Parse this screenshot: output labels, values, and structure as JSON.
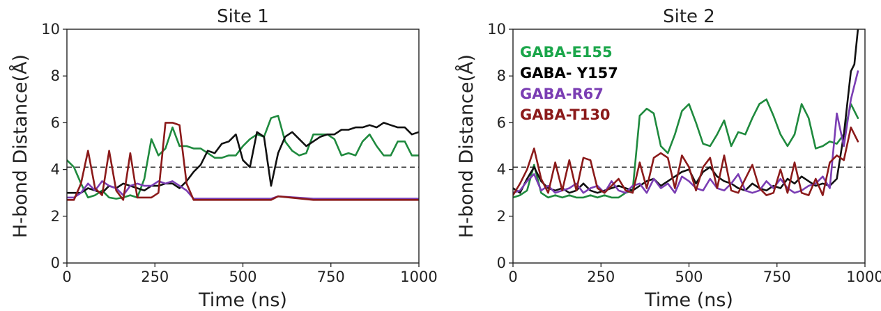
{
  "chart_data": [
    {
      "type": "line",
      "title": "Site 1",
      "xlabel": "Time (ns)",
      "ylabel": "H-bond Distance(Å)",
      "xlim": [
        0,
        1000
      ],
      "ylim": [
        0,
        10
      ],
      "xticks": [
        "0",
        "250",
        "500",
        "750",
        "1000"
      ],
      "yticks": [
        "0",
        "2",
        "4",
        "6",
        "8",
        "10"
      ],
      "reference_line": {
        "y": 4.1,
        "style": "dashed"
      },
      "series": [
        {
          "color": "#1f8a3e",
          "x": [
            0,
            20,
            40,
            60,
            80,
            100,
            120,
            140,
            160,
            180,
            200,
            220,
            240,
            260,
            280,
            300,
            320,
            340,
            360,
            380,
            400,
            420,
            440,
            460,
            480,
            500,
            520,
            540,
            560,
            580,
            600,
            620,
            640,
            660,
            680,
            700,
            720,
            740,
            760,
            780,
            800,
            820,
            840,
            860,
            880,
            900,
            920,
            940,
            960,
            980,
            1000
          ],
          "y": [
            4.4,
            4.1,
            3.4,
            2.8,
            2.9,
            3.1,
            2.8,
            2.75,
            2.8,
            2.9,
            2.8,
            3.6,
            5.3,
            4.6,
            4.9,
            5.8,
            5.0,
            5.0,
            4.9,
            4.9,
            4.7,
            4.5,
            4.5,
            4.6,
            4.6,
            5.0,
            5.3,
            5.5,
            5.4,
            6.2,
            6.3,
            5.2,
            4.8,
            4.6,
            4.7,
            5.5,
            5.5,
            5.5,
            5.3,
            4.6,
            4.7,
            4.6,
            5.2,
            5.5,
            5.0,
            4.6,
            4.6,
            5.2,
            5.2,
            4.6,
            4.6
          ]
        },
        {
          "color": "#111111",
          "x": [
            0,
            20,
            40,
            60,
            80,
            100,
            120,
            140,
            160,
            180,
            200,
            220,
            240,
            260,
            280,
            300,
            320,
            340,
            360,
            380,
            400,
            420,
            440,
            460,
            480,
            500,
            520,
            540,
            560,
            580,
            600,
            620,
            640,
            660,
            680,
            700,
            720,
            740,
            760,
            780,
            800,
            820,
            840,
            860,
            880,
            900,
            920,
            940,
            960,
            980,
            1000
          ],
          "y": [
            3.0,
            3.0,
            3.0,
            3.2,
            3.1,
            3.0,
            3.3,
            3.2,
            3.4,
            3.3,
            3.2,
            3.1,
            3.3,
            3.3,
            3.4,
            3.4,
            3.2,
            3.5,
            3.9,
            4.2,
            4.8,
            4.7,
            5.1,
            5.2,
            5.5,
            4.4,
            4.1,
            5.6,
            5.4,
            3.3,
            4.7,
            5.4,
            5.6,
            5.3,
            5.0,
            5.2,
            5.4,
            5.5,
            5.5,
            5.7,
            5.7,
            5.8,
            5.8,
            5.9,
            5.8,
            6.0,
            5.9,
            5.8,
            5.8,
            5.5,
            5.6
          ]
        },
        {
          "color": "#7a3db3",
          "x": [
            0,
            20,
            40,
            60,
            80,
            100,
            120,
            140,
            160,
            180,
            200,
            220,
            240,
            260,
            280,
            300,
            320,
            340,
            360,
            380,
            400,
            500,
            580,
            600,
            700,
            800,
            900,
            1000
          ],
          "y": [
            2.8,
            2.8,
            3.0,
            3.4,
            3.1,
            3.5,
            3.3,
            3.2,
            2.9,
            3.3,
            3.4,
            3.3,
            3.3,
            3.5,
            3.4,
            3.5,
            3.3,
            3.1,
            2.75,
            2.75,
            2.75,
            2.75,
            2.75,
            2.85,
            2.75,
            2.75,
            2.75,
            2.75
          ]
        },
        {
          "color": "#8b1a1a",
          "x": [
            0,
            20,
            40,
            60,
            80,
            100,
            120,
            140,
            160,
            180,
            200,
            220,
            240,
            260,
            280,
            300,
            320,
            340,
            360,
            380,
            400,
            500,
            580,
            600,
            700,
            800,
            900,
            1000
          ],
          "y": [
            2.7,
            2.7,
            3.4,
            4.8,
            3.2,
            2.9,
            4.8,
            3.1,
            2.7,
            4.7,
            2.8,
            2.8,
            2.8,
            3.0,
            6.0,
            6.0,
            5.9,
            3.4,
            2.7,
            2.7,
            2.7,
            2.7,
            2.7,
            2.85,
            2.7,
            2.7,
            2.7,
            2.7
          ]
        }
      ]
    },
    {
      "type": "line",
      "title": "Site 2",
      "xlabel": "Time (ns)",
      "ylabel": "H-bond Distance(Å)",
      "xlim": [
        0,
        1000
      ],
      "ylim": [
        0,
        10
      ],
      "xticks": [
        "0",
        "250",
        "500",
        "750",
        "1000"
      ],
      "yticks": [
        "0",
        "2",
        "4",
        "6",
        "8",
        "10"
      ],
      "reference_line": {
        "y": 4.1,
        "style": "dashed"
      },
      "legend": {
        "placement": "top-left",
        "entries": [
          {
            "label": "GABA-E155",
            "color": "#1aa64a"
          },
          {
            "label": "GABA- Y157",
            "color": "#000000"
          },
          {
            "label": "GABA-R67",
            "color": "#7a3db3"
          },
          {
            "label": "GABA-T130",
            "color": "#8b1a1a"
          }
        ]
      },
      "series": [
        {
          "color": "#1f8a3e",
          "x": [
            0,
            20,
            40,
            60,
            80,
            100,
            120,
            140,
            160,
            180,
            200,
            220,
            240,
            260,
            280,
            300,
            320,
            340,
            360,
            380,
            400,
            420,
            440,
            460,
            480,
            500,
            520,
            540,
            560,
            580,
            600,
            620,
            640,
            660,
            680,
            700,
            720,
            740,
            760,
            780,
            800,
            820,
            840,
            860,
            880,
            900,
            920,
            940,
            960,
            980
          ],
          "y": [
            2.8,
            2.9,
            3.1,
            4.2,
            3.0,
            2.8,
            2.9,
            2.8,
            2.9,
            2.8,
            2.8,
            2.9,
            2.8,
            2.9,
            2.8,
            2.8,
            3.0,
            3.1,
            6.3,
            6.6,
            6.4,
            5.0,
            4.7,
            5.5,
            6.5,
            6.8,
            6.0,
            5.1,
            5.0,
            5.5,
            6.1,
            5.0,
            5.6,
            5.5,
            6.2,
            6.8,
            7.0,
            6.3,
            5.5,
            5.0,
            5.5,
            6.8,
            6.2,
            4.9,
            5.0,
            5.2,
            5.1,
            5.5,
            6.8,
            6.2
          ]
        },
        {
          "color": "#111111",
          "x": [
            0,
            20,
            40,
            60,
            80,
            100,
            120,
            140,
            160,
            180,
            200,
            220,
            240,
            260,
            280,
            300,
            320,
            340,
            360,
            380,
            400,
            420,
            440,
            460,
            480,
            500,
            520,
            540,
            560,
            580,
            600,
            620,
            640,
            660,
            680,
            700,
            720,
            740,
            760,
            780,
            800,
            820,
            840,
            860,
            880,
            900,
            920,
            940,
            960,
            970,
            980
          ],
          "y": [
            3.2,
            3.0,
            3.6,
            4.1,
            3.5,
            3.2,
            3.1,
            3.2,
            3.0,
            3.1,
            3.4,
            3.1,
            3.0,
            3.1,
            3.2,
            3.3,
            3.2,
            3.1,
            3.3,
            3.5,
            3.6,
            3.3,
            3.5,
            3.7,
            3.9,
            4.0,
            3.4,
            3.9,
            4.1,
            3.7,
            3.5,
            3.4,
            3.2,
            3.1,
            3.4,
            3.2,
            3.1,
            3.3,
            3.2,
            3.6,
            3.4,
            3.7,
            3.5,
            3.3,
            3.4,
            3.3,
            3.6,
            5.5,
            8.2,
            8.5,
            10
          ]
        },
        {
          "color": "#7a3db3",
          "x": [
            0,
            20,
            40,
            60,
            80,
            100,
            120,
            140,
            160,
            180,
            200,
            220,
            240,
            260,
            280,
            300,
            320,
            340,
            360,
            380,
            400,
            420,
            440,
            460,
            480,
            500,
            520,
            540,
            560,
            580,
            600,
            620,
            640,
            660,
            680,
            700,
            720,
            740,
            760,
            780,
            800,
            820,
            840,
            860,
            880,
            900,
            920,
            940,
            960,
            980
          ],
          "y": [
            3.0,
            3.1,
            3.5,
            3.8,
            3.1,
            3.3,
            3.0,
            3.1,
            3.2,
            3.4,
            3.0,
            3.2,
            3.3,
            3.0,
            3.5,
            3.1,
            3.0,
            3.3,
            3.4,
            3.0,
            3.6,
            3.2,
            3.4,
            3.0,
            3.7,
            3.5,
            3.2,
            3.1,
            3.6,
            3.2,
            3.1,
            3.4,
            3.8,
            3.1,
            3.0,
            3.1,
            3.5,
            3.2,
            3.6,
            3.2,
            3.0,
            3.1,
            3.3,
            3.4,
            3.7,
            3.2,
            6.4,
            5.0,
            7.0,
            8.2
          ]
        },
        {
          "color": "#8b1a1a",
          "x": [
            0,
            20,
            40,
            60,
            80,
            100,
            120,
            140,
            160,
            180,
            200,
            220,
            240,
            260,
            280,
            300,
            320,
            340,
            360,
            380,
            400,
            420,
            440,
            460,
            480,
            500,
            520,
            540,
            560,
            580,
            600,
            620,
            640,
            660,
            680,
            700,
            720,
            740,
            760,
            780,
            800,
            820,
            840,
            860,
            880,
            900,
            920,
            940,
            960,
            980
          ],
          "y": [
            2.9,
            3.4,
            4.0,
            4.9,
            3.6,
            3.0,
            4.3,
            3.1,
            4.4,
            3.1,
            4.5,
            4.4,
            3.2,
            3.0,
            3.3,
            3.6,
            3.1,
            3.0,
            4.3,
            3.2,
            4.5,
            4.7,
            4.5,
            3.2,
            4.6,
            4.1,
            3.1,
            4.1,
            4.5,
            3.2,
            4.6,
            3.1,
            3.0,
            3.6,
            4.2,
            3.2,
            2.9,
            3.0,
            4.0,
            3.0,
            4.3,
            3.0,
            2.9,
            3.6,
            2.9,
            4.3,
            4.6,
            4.4,
            5.8,
            5.2
          ]
        }
      ]
    }
  ]
}
